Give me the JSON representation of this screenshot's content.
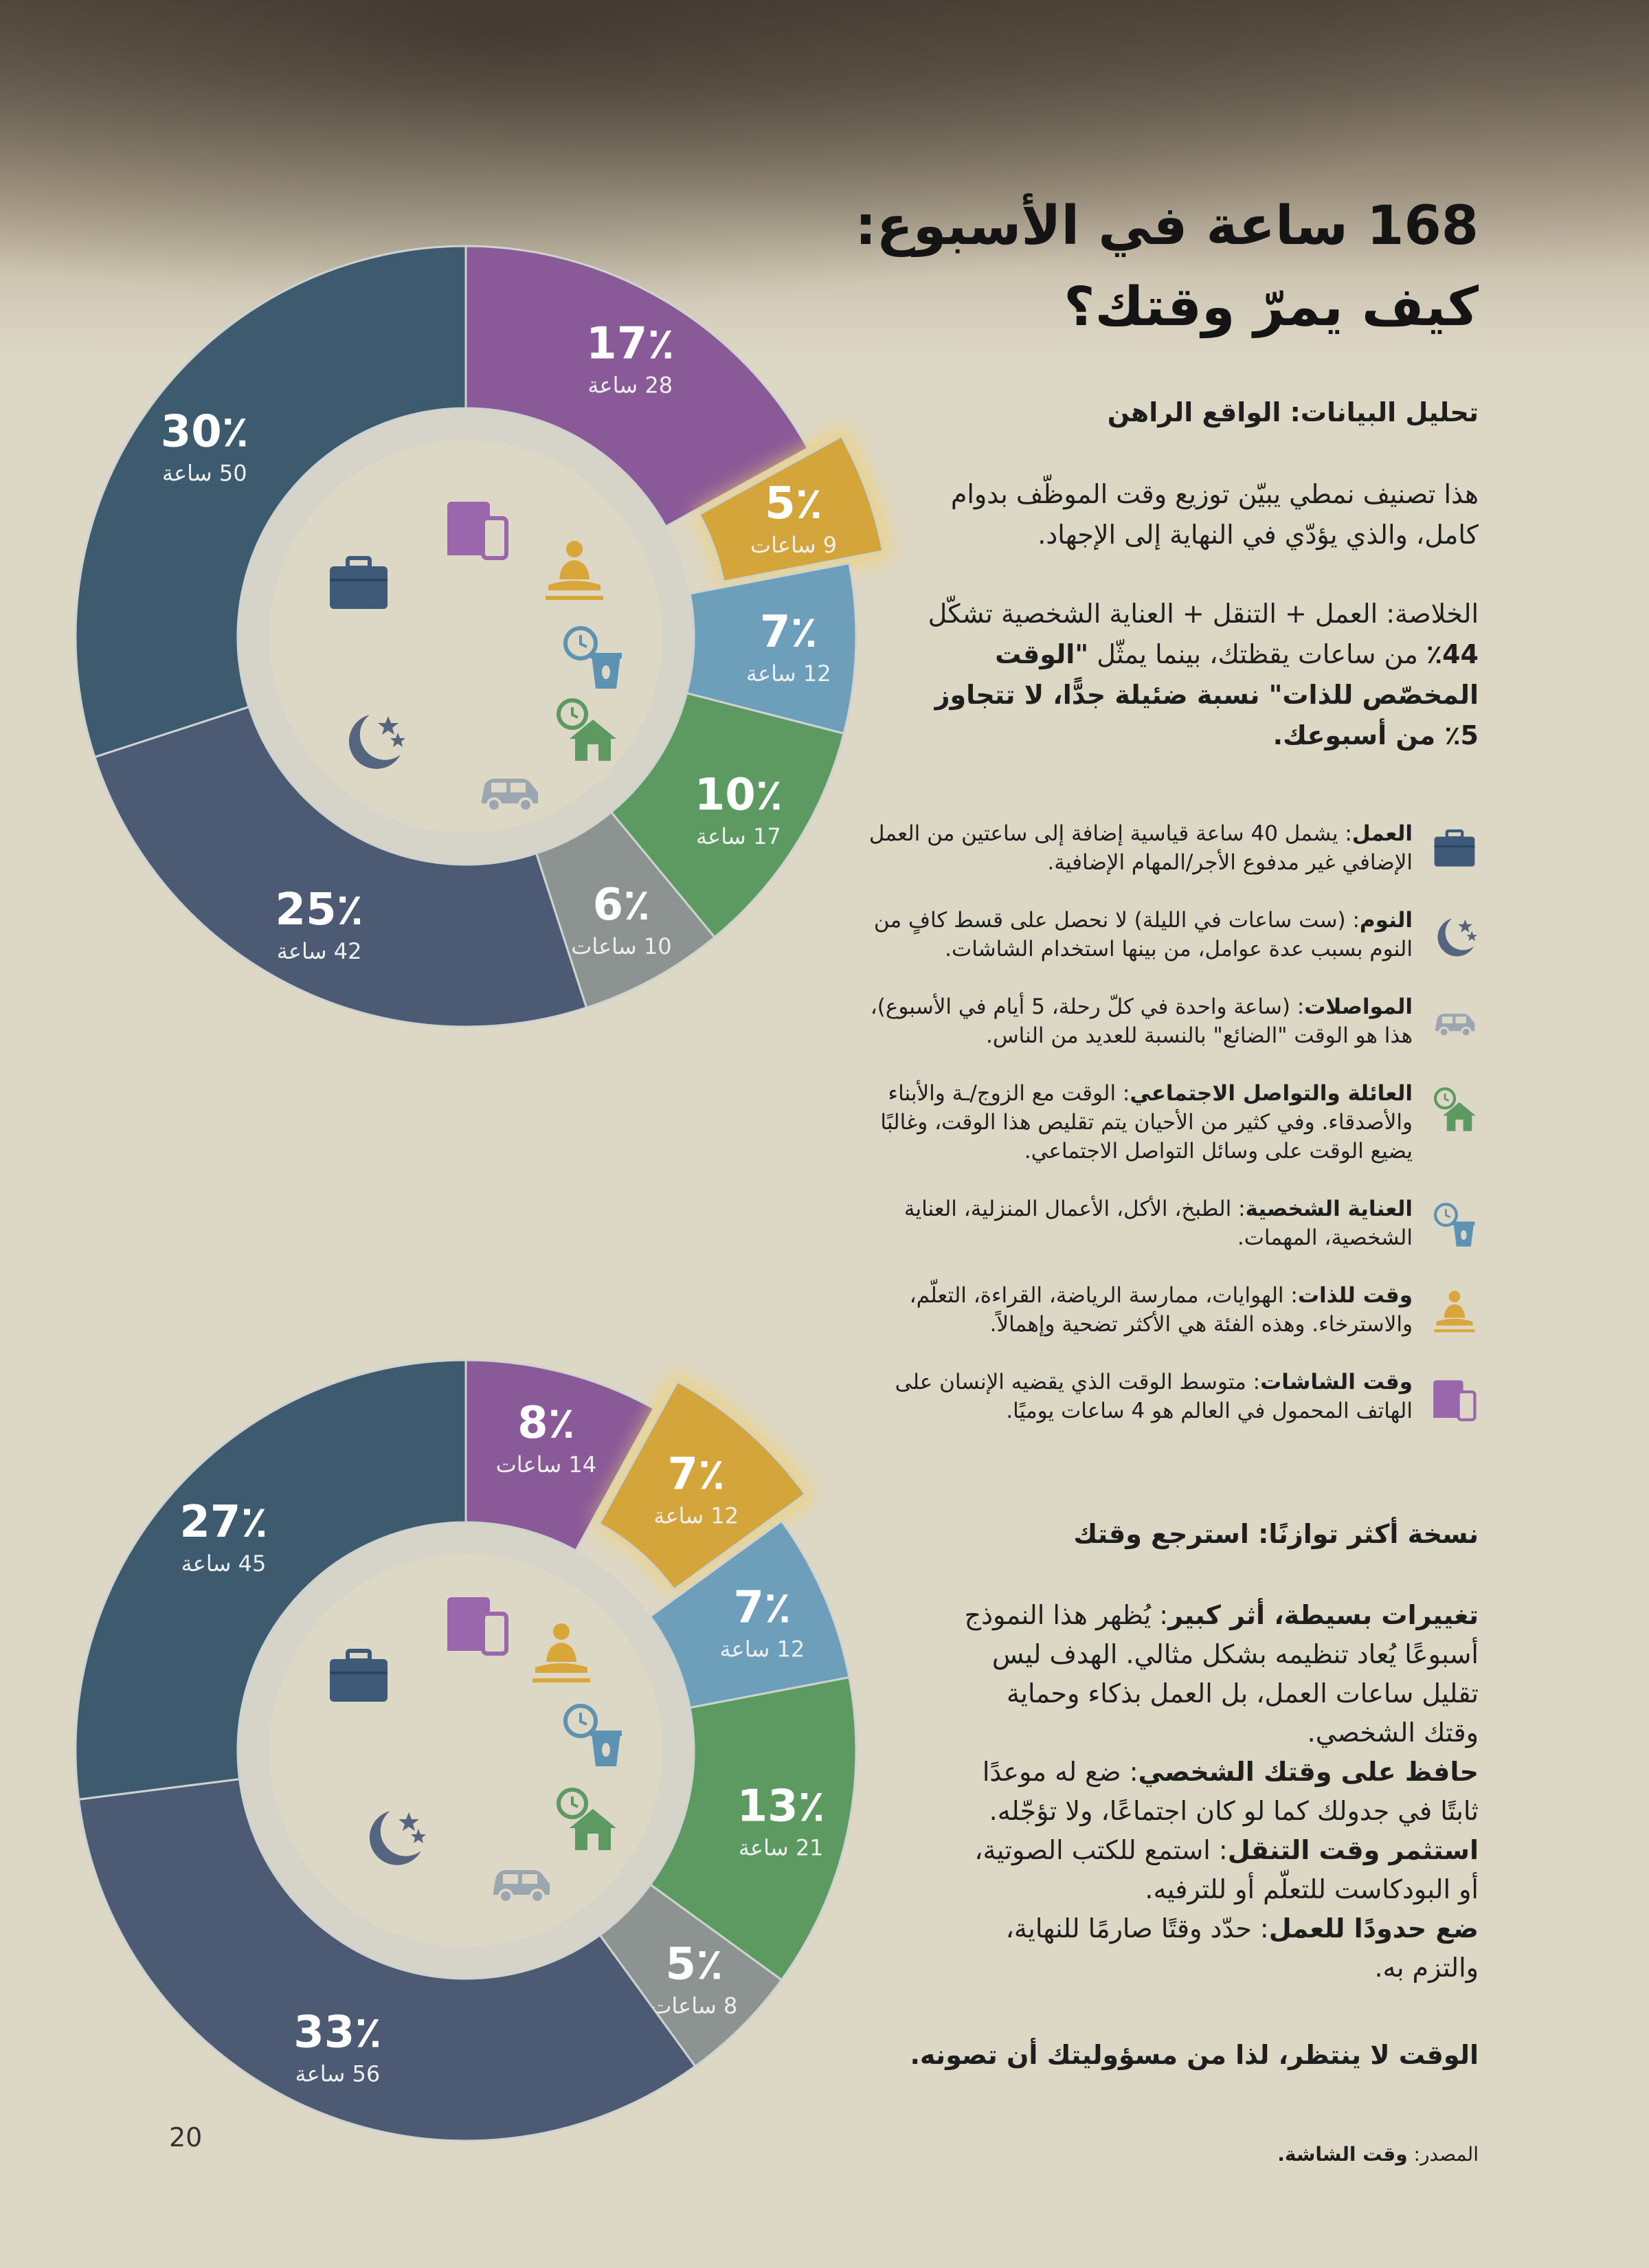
{
  "header": {
    "title_line1": "168 ساعة في الأسبوع:",
    "title_line2": "كيف يمرّ وقتك؟"
  },
  "analysis": {
    "heading": "تحليل البيانات: الواقع الراهن",
    "intro": "هذا تصنيف نمطي يبيّن توزيع وقت الموظّف بدوام كامل، والذي يؤدّي في النهاية إلى الإجهاد.",
    "summary_prefix": "الخلاصة: العمل + التنقل + العناية الشخصية تشكّل ",
    "summary_pct": "44٪",
    "summary_mid": " من ساعات يقظتك، بينما يمثّل ",
    "summary_bold": "\"الوقت المخصّص للذات\" نسبة ضئيلة جدًّا، لا تتجاوز 5٪ من أسبوعك."
  },
  "legend": [
    {
      "icon": "briefcase-icon",
      "label": "العمل",
      "text": ": يشمل 40 ساعة قياسية إضافة إلى ساعتين من العمل الإضافي غير مدفوع الأجر/المهام الإضافية."
    },
    {
      "icon": "moon-stars-icon",
      "label": "النوم",
      "text": ": (ست ساعات في الليلة) لا نحصل على قسط كافٍ من النوم بسبب عدة عوامل، من بينها استخدام الشاشات."
    },
    {
      "icon": "car-icon",
      "label": "المواصلات",
      "text": ": (ساعة واحدة في كلّ رحلة، 5 أيام في الأسبوع)، هذا هو الوقت \"الضائع\" بالنسبة للعديد من الناس."
    },
    {
      "icon": "house-clock-icon",
      "label": "العائلة والتواصل الاجتماعي",
      "text": ": الوقت مع الزوج/ـة والأبناء والأصدقاء. وفي كثير من الأحيان يتم تقليص هذا الوقت، وغالبًا يضيع الوقت على وسائل التواصل الاجتماعي."
    },
    {
      "icon": "cup-clock-icon",
      "label": "العناية الشخصية",
      "text": ": الطبخ، الأكل، الأعمال المنزلية، العناية الشخصية، المهمات."
    },
    {
      "icon": "meditation-icon",
      "label": "وقت للذات",
      "text": ": الهوايات، ممارسة الرياضة، القراءة، التعلّم، والاسترخاء. وهذه الفئة هي الأكثر تضحية وإهمالاً."
    },
    {
      "icon": "devices-icon",
      "label": "وقت الشاشات",
      "text": ": متوسط الوقت الذي يقضيه الإنسان على الهاتف المحمول في العالم هو 4 ساعات يوميًا."
    }
  ],
  "balanced": {
    "heading": "نسخة أكثر توازنًا: استرجع وقتك",
    "tips": [
      {
        "bold": "تغييرات بسيطة، أثر كبير",
        "text": ": يُظهر هذا النموذج أسبوعًا يُعاد تنظيمه بشكل مثالي. الهدف ليس تقليل ساعات العمل، بل العمل بذكاء وحماية وقتك الشخصي."
      },
      {
        "bold": "حافظ على وقتك الشخصي",
        "text": ": ضع له موعدًا ثابتًا في جدولك كما لو كان اجتماعًا، ولا تؤجّله."
      },
      {
        "bold": "استثمر وقت التنقل",
        "text": ": استمع للكتب الصوتية، أو البودكاست للتعلّم أو للترفيه."
      },
      {
        "bold": "ضع حدودًا للعمل",
        "text": ": حدّد وقتًا صارمًا للنهاية، والتزم به."
      }
    ],
    "closing": "الوقت لا ينتظر، لذا من مسؤوليتك أن تصونه."
  },
  "source": {
    "label": "المصدر: ",
    "value": "وقت الشاشة."
  },
  "page_number": "20",
  "chart_data": [
    {
      "type": "pie",
      "title": "current week",
      "total_hours": 168,
      "slices": [
        {
          "category": "وقت الشاشات",
          "value": 17,
          "hours": 28,
          "pct_label": "17٪",
          "hours_label": "28 ساعة",
          "color": "#8a5a98",
          "exploded": false
        },
        {
          "category": "وقت للذات",
          "value": 5,
          "hours": 9,
          "pct_label": "5٪",
          "hours_label": "9 ساعات",
          "color": "#d4a53a",
          "exploded": true
        },
        {
          "category": "العناية الشخصية",
          "value": 7,
          "hours": 12,
          "pct_label": "7٪",
          "hours_label": "12 ساعة",
          "color": "#6d9fba",
          "exploded": false
        },
        {
          "category": "العائلة والتواصل الاجتماعي",
          "value": 10,
          "hours": 17,
          "pct_label": "10٪",
          "hours_label": "17 ساعة",
          "color": "#5c9a62",
          "exploded": false
        },
        {
          "category": "المواصلات",
          "value": 6,
          "hours": 10,
          "pct_label": "6٪",
          "hours_label": "10 ساعات",
          "color": "#8c9390",
          "exploded": false
        },
        {
          "category": "النوم",
          "value": 25,
          "hours": 42,
          "pct_label": "25٪",
          "hours_label": "42 ساعة",
          "color": "#4c5b73",
          "exploded": false
        },
        {
          "category": "العمل",
          "value": 30,
          "hours": 50,
          "pct_label": "30٪",
          "hours_label": "50 ساعة",
          "color": "#3e5a6f",
          "exploded": false
        }
      ]
    },
    {
      "type": "pie",
      "title": "balanced week",
      "total_hours": 168,
      "slices": [
        {
          "category": "وقت الشاشات",
          "value": 8,
          "hours": 14,
          "pct_label": "8٪",
          "hours_label": "14 ساعات",
          "color": "#8a5a98",
          "exploded": false
        },
        {
          "category": "وقت للذات",
          "value": 7,
          "hours": 12,
          "pct_label": "7٪",
          "hours_label": "12 ساعة",
          "color": "#d4a53a",
          "exploded": true
        },
        {
          "category": "العناية الشخصية",
          "value": 7,
          "hours": 12,
          "pct_label": "7٪",
          "hours_label": "12 ساعة",
          "color": "#6d9fba",
          "exploded": false
        },
        {
          "category": "العائلة والتواصل الاجتماعي",
          "value": 13,
          "hours": 21,
          "pct_label": "13٪",
          "hours_label": "21 ساعة",
          "color": "#5c9a62",
          "exploded": false
        },
        {
          "category": "المواصلات",
          "value": 5,
          "hours": 8,
          "pct_label": "5٪",
          "hours_label": "8 ساعات",
          "color": "#8c9390",
          "exploded": false
        },
        {
          "category": "النوم",
          "value": 33,
          "hours": 56,
          "pct_label": "33٪",
          "hours_label": "56 ساعة",
          "color": "#4c5b73",
          "exploded": false
        },
        {
          "category": "العمل",
          "value": 27,
          "hours": 45,
          "pct_label": "27٪",
          "hours_label": "45 ساعة",
          "color": "#3e5a6f",
          "exploded": false
        }
      ]
    }
  ]
}
